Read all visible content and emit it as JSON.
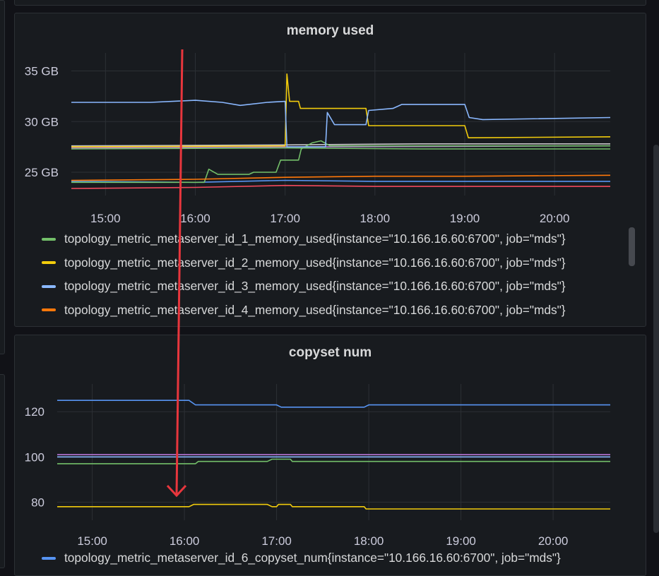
{
  "colors": {
    "green": "#73bf69",
    "yellow": "#f2cc0c",
    "blue": "#8ab8ff",
    "orange": "#ff780a",
    "red": "#f2495c",
    "purple": "#b877d9",
    "gray": "#c8c8c8",
    "arrow": "#e8363d",
    "panel_bg": "#181b1f",
    "grid": "#2c3035"
  },
  "panels": [
    {
      "title": "memory used",
      "legend": [
        {
          "label": "topology_metric_metaserver_id_1_memory_used{instance=\"10.166.16.60:6700\", job=\"mds\"}",
          "color": "#73bf69"
        },
        {
          "label": "topology_metric_metaserver_id_2_memory_used{instance=\"10.166.16.60:6700\", job=\"mds\"}",
          "color": "#f2cc0c"
        },
        {
          "label": "topology_metric_metaserver_id_3_memory_used{instance=\"10.166.16.60:6700\", job=\"mds\"}",
          "color": "#8ab8ff"
        },
        {
          "label": "topology_metric_metaserver_id_4_memory_used{instance=\"10.166.16.60:6700\", job=\"mds\"}",
          "color": "#ff780a"
        }
      ]
    },
    {
      "title": "copyset num",
      "legend": [
        {
          "label": "topology_metric_metaserver_id_6_copyset_num{instance=\"10.166.16.60:6700\", job=\"mds\"}",
          "color": "#5794f2"
        }
      ]
    }
  ],
  "chart_data": [
    {
      "type": "line",
      "title": "memory used",
      "x_ticks": [
        "15:00",
        "16:00",
        "17:00",
        "18:00",
        "19:00",
        "20:00"
      ],
      "y_ticks": [
        "35 GB",
        "30 GB",
        "25 GB"
      ],
      "x_range": [
        14.62,
        20.62
      ],
      "ylim": [
        22.7,
        36.5
      ],
      "y_unit": "GB",
      "legend_placement": "bottom",
      "series": [
        {
          "name": "topology_metric_metaserver_id_1_memory_used{instance=\"10.166.16.60:6700\", job=\"mds\"}",
          "color": "#73bf69",
          "points": [
            [
              14.62,
              24.0
            ],
            [
              16.1,
              24.0
            ],
            [
              16.15,
              25.3
            ],
            [
              16.25,
              24.8
            ],
            [
              16.6,
              24.8
            ],
            [
              16.65,
              25.0
            ],
            [
              16.9,
              25.0
            ],
            [
              16.95,
              26.2
            ],
            [
              17.15,
              26.2
            ],
            [
              17.18,
              27.3
            ],
            [
              17.3,
              27.9
            ],
            [
              17.4,
              28.1
            ],
            [
              17.5,
              27.6
            ],
            [
              20.62,
              27.6
            ]
          ]
        },
        {
          "name": "topology_metric_metaserver_id_2_memory_used{instance=\"10.166.16.60:6700\", job=\"mds\"}",
          "color": "#f2cc0c",
          "points": [
            [
              14.62,
              27.5
            ],
            [
              17.0,
              27.6
            ],
            [
              17.02,
              34.7
            ],
            [
              17.05,
              32.0
            ],
            [
              17.15,
              32.0
            ],
            [
              17.17,
              31.3
            ],
            [
              17.9,
              31.3
            ],
            [
              17.93,
              29.6
            ],
            [
              19.0,
              29.6
            ],
            [
              19.04,
              28.4
            ],
            [
              20.62,
              28.5
            ]
          ]
        },
        {
          "name": "topology_metric_metaserver_id_3_memory_used{instance=\"10.166.16.60:6700\", job=\"mds\"}",
          "color": "#8ab8ff",
          "points": [
            [
              14.62,
              31.9
            ],
            [
              15.5,
              31.9
            ],
            [
              16.0,
              32.1
            ],
            [
              16.3,
              31.9
            ],
            [
              16.5,
              31.6
            ],
            [
              16.8,
              31.9
            ],
            [
              17.0,
              32.0
            ],
            [
              17.02,
              27.5
            ],
            [
              17.45,
              27.5
            ],
            [
              17.47,
              30.9
            ],
            [
              17.55,
              29.7
            ],
            [
              17.9,
              29.7
            ],
            [
              17.93,
              31.1
            ],
            [
              18.2,
              31.3
            ],
            [
              18.3,
              31.7
            ],
            [
              19.0,
              31.7
            ],
            [
              19.05,
              30.4
            ],
            [
              19.2,
              30.2
            ],
            [
              20.62,
              30.4
            ]
          ]
        },
        {
          "name": "topology_metric_metaserver_id_4_memory_used{instance=\"10.166.16.60:6700\", job=\"mds\"}",
          "color": "#ff780a",
          "points": [
            [
              14.62,
              24.2
            ],
            [
              16.0,
              24.3
            ],
            [
              17.0,
              24.5
            ],
            [
              18.0,
              24.6
            ],
            [
              19.0,
              24.6
            ],
            [
              20.62,
              24.7
            ]
          ]
        }
      ],
      "other_lines": [
        {
          "color": "#c8c8c8",
          "points": [
            [
              14.62,
              27.6
            ],
            [
              17.0,
              27.7
            ],
            [
              18.5,
              27.8
            ],
            [
              20.62,
              27.8
            ]
          ]
        },
        {
          "color": "#b877d9",
          "points": [
            [
              14.62,
              27.4
            ],
            [
              17.0,
              27.5
            ],
            [
              20.62,
              27.6
            ]
          ]
        },
        {
          "color": "#f2495c",
          "points": [
            [
              14.62,
              23.4
            ],
            [
              16.0,
              23.5
            ],
            [
              17.0,
              23.7
            ],
            [
              18.0,
              23.6
            ],
            [
              20.62,
              23.6
            ]
          ]
        },
        {
          "color": "#5794f2",
          "points": [
            [
              14.62,
              24.1
            ],
            [
              16.0,
              24.0
            ],
            [
              17.0,
              24.2
            ],
            [
              18.0,
              24.1
            ],
            [
              20.62,
              24.1
            ]
          ]
        },
        {
          "color": "#73bf69",
          "points": [
            [
              14.62,
              27.3
            ],
            [
              17.0,
              27.4
            ],
            [
              18.5,
              27.3
            ],
            [
              20.62,
              27.3
            ]
          ]
        }
      ]
    },
    {
      "type": "line",
      "title": "copyset num",
      "x_ticks": [
        "15:00",
        "16:00",
        "17:00",
        "18:00",
        "19:00",
        "20:00"
      ],
      "y_ticks": [
        "120",
        "100",
        "80"
      ],
      "x_range": [
        14.62,
        20.62
      ],
      "ylim": [
        72,
        131
      ],
      "legend_placement": "bottom",
      "series": [
        {
          "name": "topology_metric_metaserver_id_6_copyset_num{instance=\"10.166.16.60:6700\", job=\"mds\"}",
          "color": "#5794f2",
          "points": [
            [
              14.62,
              125
            ],
            [
              16.05,
              125
            ],
            [
              16.12,
              123
            ],
            [
              17.0,
              123
            ],
            [
              17.05,
              122
            ],
            [
              17.95,
              122
            ],
            [
              18.0,
              123
            ],
            [
              20.62,
              123
            ]
          ]
        }
      ],
      "other_lines": [
        {
          "color": "#b877d9",
          "points": [
            [
              14.62,
              101
            ],
            [
              20.62,
              101
            ]
          ]
        },
        {
          "color": "#8ab8ff",
          "points": [
            [
              14.62,
              100
            ],
            [
              20.62,
              100
            ]
          ]
        },
        {
          "color": "#73bf69",
          "points": [
            [
              14.62,
              97
            ],
            [
              16.12,
              97
            ],
            [
              16.15,
              98
            ],
            [
              16.9,
              98
            ],
            [
              16.95,
              99
            ],
            [
              17.15,
              99
            ],
            [
              17.17,
              98
            ],
            [
              20.62,
              98
            ]
          ]
        },
        {
          "color": "#f2cc0c",
          "points": [
            [
              14.62,
              78
            ],
            [
              16.05,
              78
            ],
            [
              16.1,
              79
            ],
            [
              16.9,
              79
            ],
            [
              16.95,
              78
            ],
            [
              17.0,
              78
            ],
            [
              17.02,
              79
            ],
            [
              17.15,
              79
            ],
            [
              17.17,
              78
            ],
            [
              17.95,
              78
            ],
            [
              17.97,
              77
            ],
            [
              20.62,
              77
            ]
          ]
        }
      ]
    }
  ]
}
